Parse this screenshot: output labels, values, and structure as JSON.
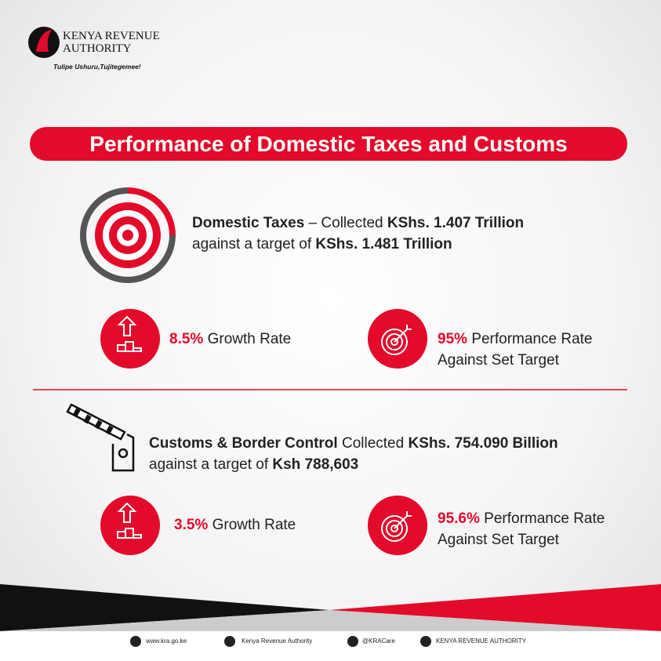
{
  "logo": {
    "line1": "KENYA REVENUE",
    "line2": "AUTHORITY",
    "tagline": "Tulipe Ushuru,Tujitegemee!"
  },
  "title": "Performance of Domestic Taxes and Customs",
  "domestic": {
    "label": "Domestic Taxes",
    "collected": "– Collected",
    "amount": "KShs. 1.407 Trillion",
    "against": "against a target of",
    "target": "KShs. 1.481 Trillion",
    "growth": {
      "value": "8.5%",
      "text": "Growth Rate"
    },
    "performance": {
      "value": "95%",
      "text": "Performance Rate",
      "text2": "Against Set Target"
    }
  },
  "customs": {
    "label": "Customs & Border Control",
    "collected": "Collected",
    "amount": "KShs. 754.090 Billion",
    "against": "against a target of",
    "target": "Ksh 788,603",
    "growth": {
      "value": "3.5%",
      "text": "Growth Rate"
    },
    "performance": {
      "value": "95.6%",
      "text": "Performance Rate",
      "text2": "Against Set Target"
    }
  },
  "footer": {
    "website": "www.kra.go.ke",
    "facebook": "Kenya Revenue Authority",
    "twitter": "@KRACare",
    "linkedin": "KENYA REVENUE AUTHORITY"
  }
}
